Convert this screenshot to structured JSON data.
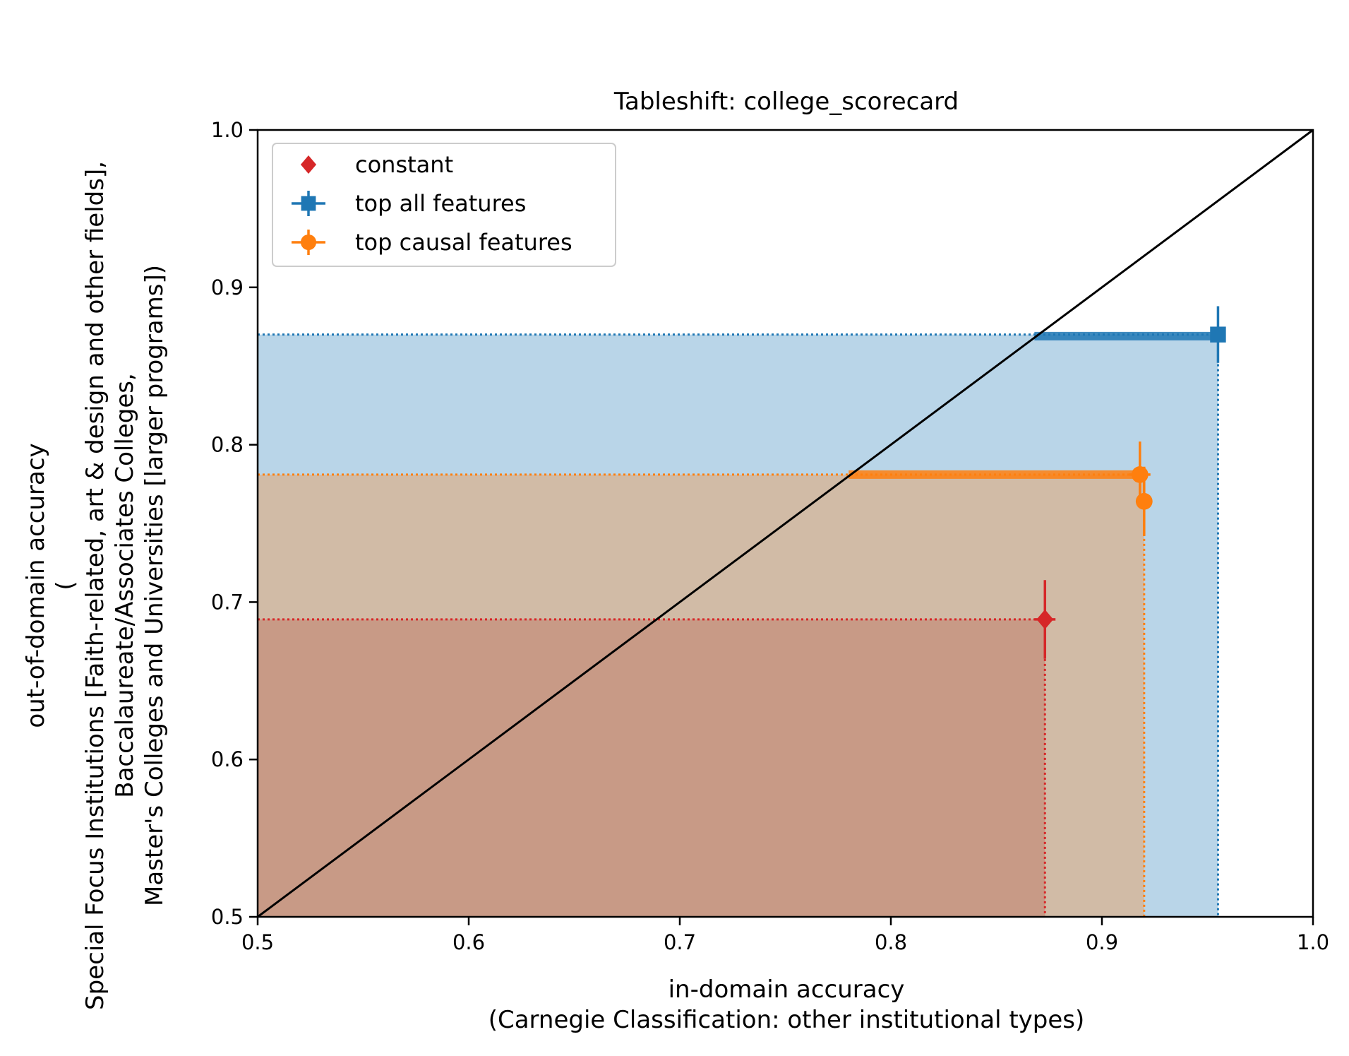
{
  "chart_data": {
    "type": "scatter",
    "title": "Tableshift: college_scorecard",
    "xlabel": [
      "in-domain accuracy",
      "(Carnegie Classification: other institutional types)"
    ],
    "ylabel": [
      "out-of-domain accuracy",
      "(",
      "Special Focus Institutions [Faith-related, art & design and other fields],",
      "Baccalaureate/Associates Colleges,",
      "Master's Colleges and Universities [larger programs])"
    ],
    "xlim": [
      0.5,
      1.0
    ],
    "ylim": [
      0.5,
      1.0
    ],
    "xticks": [
      "0.5",
      "0.6",
      "0.7",
      "0.8",
      "0.9",
      "1.0"
    ],
    "yticks": [
      "0.5",
      "0.6",
      "0.7",
      "0.8",
      "0.9",
      "1.0"
    ],
    "grid": false,
    "legend_position": "top-left",
    "diagonal": true,
    "series": [
      {
        "name": "constant",
        "color": "#d62728",
        "marker": "diamond",
        "points": [
          {
            "x": 0.873,
            "y": 0.689,
            "xerr": 0.005,
            "yerr": 0.025
          }
        ],
        "reference": {
          "x": 0.873,
          "y": 0.689
        }
      },
      {
        "name": "top all features",
        "color": "#1f77b4",
        "marker": "square",
        "points": [
          {
            "x": 0.955,
            "y": 0.87,
            "xerr": 0.0,
            "yerr": 0.018
          }
        ],
        "band": {
          "x0": 0.868,
          "x1": 0.955,
          "y": 0.869
        },
        "reference": {
          "x": 0.955,
          "y": 0.87
        }
      },
      {
        "name": "top causal features",
        "color": "#ff7f0e",
        "marker": "circle",
        "points": [
          {
            "x": 0.918,
            "y": 0.781,
            "xerr": 0.005,
            "yerr": 0.021
          },
          {
            "x": 0.92,
            "y": 0.764,
            "xerr": 0.003,
            "yerr": 0.022
          }
        ],
        "band": {
          "x0": 0.78,
          "x1": 0.92,
          "y": 0.781
        },
        "reference": {
          "x": 0.92,
          "y": 0.781
        }
      }
    ]
  }
}
